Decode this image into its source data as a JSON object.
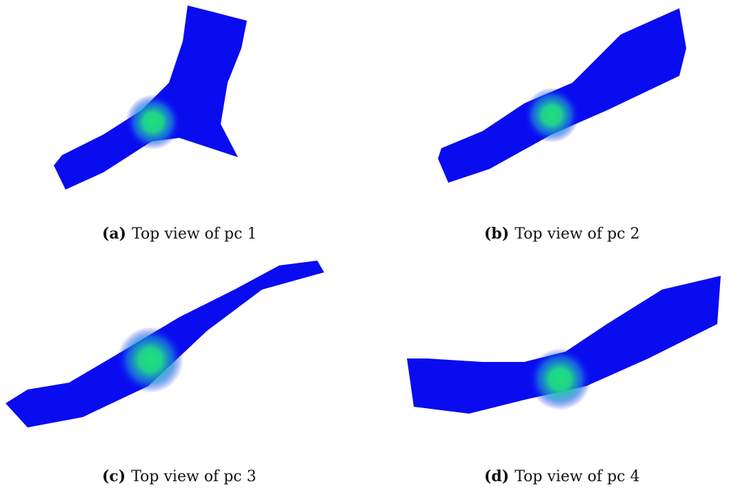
{
  "figures": [
    {
      "label": "(a)",
      "caption": "Top view of pc 1"
    },
    {
      "label": "(b)",
      "caption": "Top view of pc 2"
    },
    {
      "label": "(c)",
      "caption": "Top view of pc 3"
    },
    {
      "label": "(d)",
      "caption": "Top view of pc 4"
    }
  ]
}
